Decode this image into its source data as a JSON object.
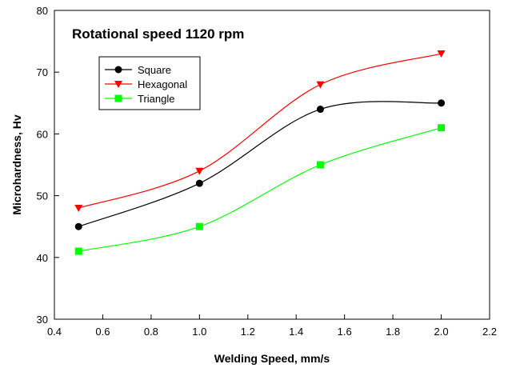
{
  "chart_data": {
    "type": "line",
    "title": "Rotational speed 1120 rpm",
    "xlabel": "Welding Speed, mm/s",
    "ylabel": "Microhardness, Hv",
    "xlim": [
      0.4,
      2.2
    ],
    "ylim": [
      30,
      80
    ],
    "xticks": [
      0.4,
      0.6,
      0.8,
      1.0,
      1.2,
      1.4,
      1.6,
      1.8,
      2.0,
      2.2
    ],
    "xtick_labels": [
      "0.4",
      "0.6",
      "0.8",
      "1.0",
      "1.2",
      "1.4",
      "1.6",
      "1.8",
      "2.0",
      "2.2"
    ],
    "yticks": [
      30,
      40,
      50,
      60,
      70,
      80
    ],
    "ytick_labels": [
      "30",
      "40",
      "50",
      "60",
      "70",
      "80"
    ],
    "grid": false,
    "legend_position": "top-left",
    "x": [
      0.5,
      1.0,
      1.5,
      2.0
    ],
    "series": [
      {
        "name": "Square",
        "values": [
          45,
          52,
          64,
          65
        ],
        "color": "#000000",
        "marker": "circle"
      },
      {
        "name": "Hexagonal",
        "values": [
          48,
          54,
          68,
          73
        ],
        "color": "#ff0000",
        "marker": "triangle-down"
      },
      {
        "name": "Triangle",
        "values": [
          41,
          45,
          55,
          61
        ],
        "color": "#00ff00",
        "marker": "square"
      }
    ]
  }
}
